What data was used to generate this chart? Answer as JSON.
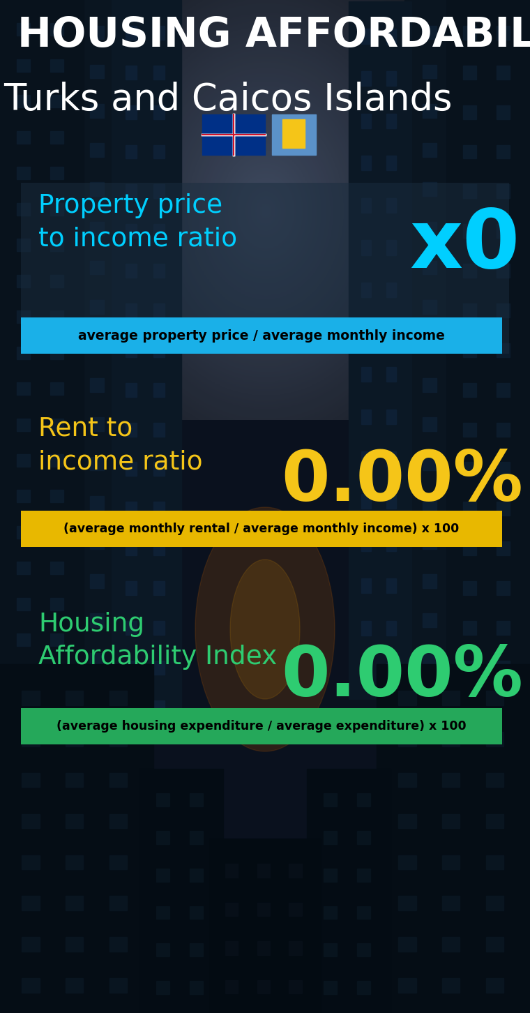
{
  "title_line1": "HOUSING AFFORDABILITY",
  "title_line2": "Turks and Caicos Islands",
  "section1_label": "Property price\nto income ratio",
  "section1_value": "x0",
  "section1_sublabel": "average property price / average monthly income",
  "section1_label_color": "#00cfff",
  "section1_value_color": "#00cfff",
  "section1_bar_color": "#1ab0e8",
  "section2_label": "Rent to\nincome ratio",
  "section2_value": "0.00%",
  "section2_sublabel": "(average monthly rental / average monthly income) x 100",
  "section2_label_color": "#f5c518",
  "section2_value_color": "#f5c518",
  "section2_bar_color": "#e8b800",
  "section3_label": "Housing\nAffordability Index",
  "section3_value": "0.00%",
  "section3_sublabel": "(average housing expenditure / average expenditure) x 100",
  "section3_label_color": "#2ecc71",
  "section3_value_color": "#2ecc71",
  "section3_bar_color": "#25a85a",
  "bg_color": "#060e18",
  "title1_color": "#ffffff",
  "title2_color": "#ffffff",
  "panel1_color": "#1a2d3f",
  "sublabel_text_color": "#000000"
}
